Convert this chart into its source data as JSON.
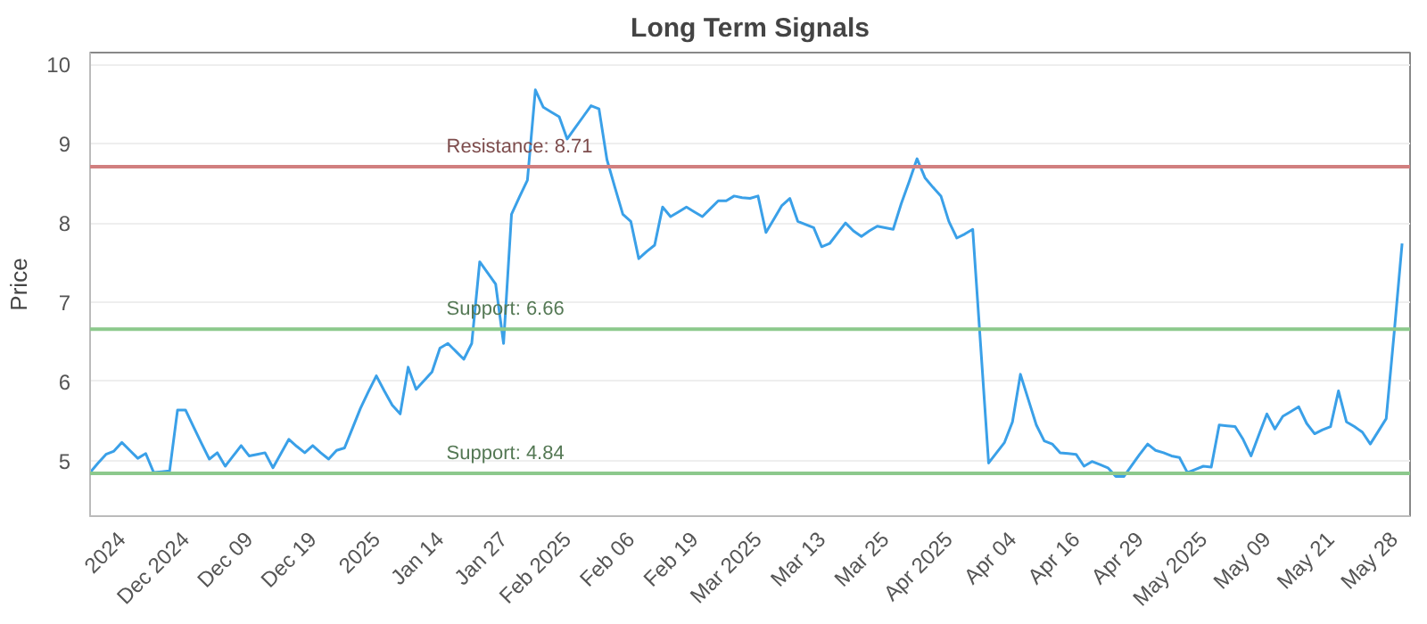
{
  "chart_data": {
    "type": "line",
    "title": "Long Term Signals",
    "ylabel": "Price",
    "categories": [
      null,
      null,
      null,
      null,
      "2024",
      null,
      null,
      null,
      null,
      null,
      null,
      null,
      "Dec 2024",
      null,
      null,
      null,
      null,
      null,
      null,
      null,
      "Dec 09",
      null,
      null,
      null,
      null,
      null,
      null,
      null,
      "Dec 19",
      null,
      null,
      null,
      null,
      null,
      null,
      null,
      "2025",
      null,
      null,
      null,
      null,
      null,
      null,
      null,
      "Jan 14",
      null,
      null,
      null,
      null,
      null,
      null,
      null,
      "Jan 27",
      null,
      null,
      null,
      null,
      null,
      null,
      null,
      "Feb 2025",
      null,
      null,
      null,
      null,
      null,
      null,
      null,
      "Feb 06",
      null,
      null,
      null,
      null,
      null,
      null,
      null,
      "Feb 19",
      null,
      null,
      null,
      null,
      null,
      null,
      null,
      "Mar 2025",
      null,
      null,
      null,
      null,
      null,
      null,
      null,
      "Mar 13",
      null,
      null,
      null,
      null,
      null,
      null,
      null,
      "Mar 25",
      null,
      null,
      null,
      null,
      null,
      null,
      null,
      "Apr 2025",
      null,
      null,
      null,
      null,
      null,
      null,
      null,
      "Apr 04",
      null,
      null,
      null,
      null,
      null,
      null,
      null,
      "Apr 16",
      null,
      null,
      null,
      null,
      null,
      null,
      null,
      "Apr 29",
      null,
      null,
      null,
      null,
      null,
      null,
      null,
      "May 2025",
      null,
      null,
      null,
      null,
      null,
      null,
      null,
      "May 09",
      null,
      null,
      null,
      null,
      null,
      null,
      null,
      "May 21",
      null,
      null,
      null,
      null,
      null,
      null,
      null,
      "May 28",
      null
    ],
    "series": [
      {
        "color": "#3aa0e8",
        "values": [
          4.85,
          4.97,
          5.08,
          5.12,
          5.23,
          5.13,
          5.03,
          5.09,
          4.85,
          4.86,
          4.87,
          5.64,
          5.64,
          5.43,
          5.22,
          5.02,
          5.1,
          4.93,
          5.06,
          5.19,
          5.06,
          5.08,
          5.1,
          4.91,
          5.09,
          5.27,
          5.18,
          5.1,
          5.19,
          5.1,
          5.02,
          5.13,
          5.16,
          5.41,
          5.66,
          5.87,
          6.07,
          5.88,
          5.7,
          5.59,
          6.18,
          5.9,
          6.01,
          6.12,
          6.42,
          6.48,
          6.38,
          6.28,
          6.48,
          7.51,
          7.37,
          7.23,
          6.48,
          8.11,
          8.33,
          8.54,
          9.68,
          9.46,
          9.4,
          9.34,
          9.06,
          9.2,
          9.34,
          9.48,
          9.44,
          8.8,
          8.45,
          8.11,
          8.02,
          7.55,
          7.64,
          7.72,
          8.2,
          8.08,
          8.14,
          8.2,
          8.14,
          8.08,
          8.18,
          8.28,
          8.28,
          8.34,
          8.32,
          8.31,
          8.34,
          7.88,
          8.05,
          8.22,
          8.31,
          8.02,
          7.98,
          7.94,
          7.7,
          7.74,
          7.87,
          8.0,
          7.9,
          7.83,
          7.9,
          7.96,
          7.94,
          7.92,
          8.24,
          8.52,
          8.81,
          8.57,
          8.45,
          8.34,
          8.02,
          7.81,
          7.86,
          7.92,
          6.45,
          4.97,
          5.1,
          5.23,
          5.49,
          6.09,
          5.77,
          5.45,
          5.25,
          5.21,
          5.1,
          5.09,
          5.08,
          4.93,
          4.99,
          4.95,
          4.91,
          4.8,
          4.8,
          4.94,
          5.08,
          5.21,
          5.13,
          5.1,
          5.06,
          5.04,
          4.85,
          4.89,
          4.93,
          4.92,
          5.45,
          5.44,
          5.43,
          5.27,
          5.06,
          5.33,
          5.59,
          5.4,
          5.56,
          5.62,
          5.68,
          5.47,
          5.34,
          5.39,
          5.43,
          5.88,
          5.49,
          5.43,
          5.36,
          5.21,
          5.37,
          5.53,
          6.61,
          7.74
        ]
      }
    ],
    "ylim": [
      4.3,
      10.15
    ],
    "yticks": [
      5,
      6,
      7,
      8,
      9,
      10
    ],
    "grid": "y",
    "ref_lines": [
      {
        "axis": "y",
        "value": 8.71,
        "label": "Resistance: 8.71",
        "color": "#d17f7f"
      },
      {
        "axis": "y",
        "value": 6.66,
        "label": "Support: 6.66",
        "color": "#8cc98c"
      },
      {
        "axis": "y",
        "value": 4.84,
        "label": "Support: 4.84",
        "color": "#8cc98c"
      }
    ]
  }
}
